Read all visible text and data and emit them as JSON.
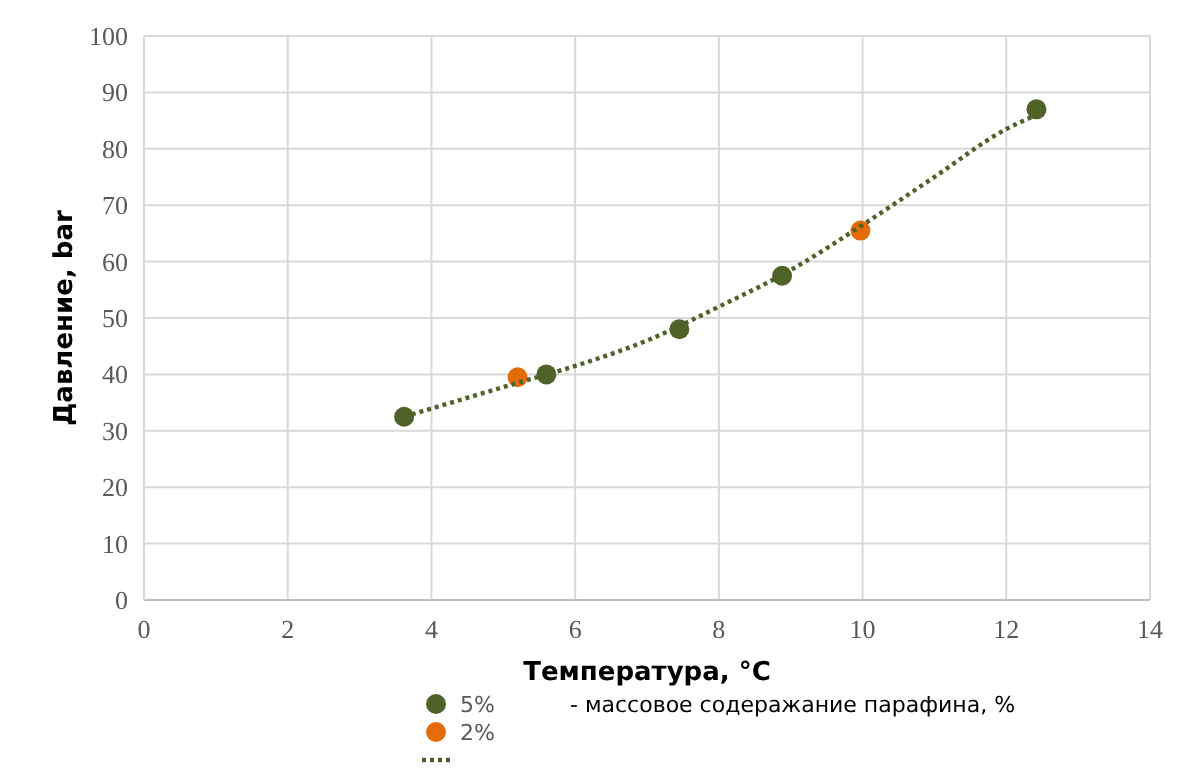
{
  "chart_data": {
    "type": "scatter",
    "xlabel": "Температура, °C",
    "ylabel": "Давление, bar",
    "xlim": [
      0,
      14
    ],
    "xticks": [
      0,
      2,
      4,
      6,
      8,
      10,
      12,
      14
    ],
    "ylim": [
      0,
      100
    ],
    "yticks": [
      0,
      10,
      20,
      30,
      40,
      50,
      60,
      70,
      80,
      90,
      100
    ],
    "grid": true,
    "legend": "bottom",
    "marker": "circle",
    "annotations": [
      "- массовое содеражание парафина, %"
    ],
    "series": [
      {
        "name": "5%",
        "color": "#4f6228",
        "x": [
          3.62,
          5.6,
          7.45,
          8.88,
          12.42
        ],
        "values": [
          32.5,
          40,
          48,
          57.5,
          87
        ]
      },
      {
        "name": "2%",
        "color": "#e36c09",
        "x": [
          5.2,
          9.97
        ],
        "values": [
          39.5,
          65.5
        ]
      },
      {
        "type": "line",
        "line_style": "dotted",
        "marker": "none",
        "color": "#4f6228",
        "x": [
          3.62,
          5.2,
          6,
          7,
          8,
          9,
          10,
          11,
          12,
          12.42
        ],
        "values": [
          32.5,
          38.5,
          41.5,
          46,
          52,
          58.5,
          66.5,
          75,
          83.5,
          86
        ]
      }
    ]
  }
}
